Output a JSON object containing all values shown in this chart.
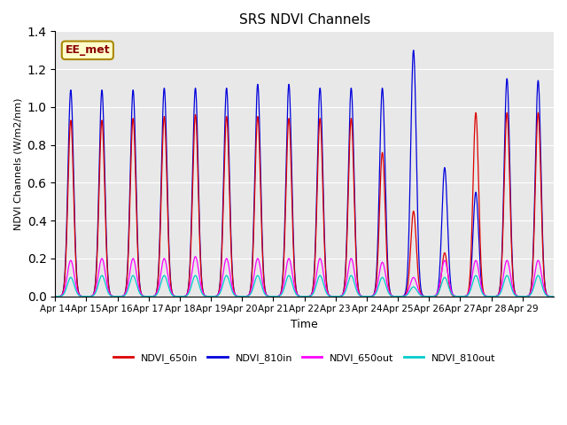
{
  "title": "SRS NDVI Channels",
  "ylabel": "NDVI Channels (W/m2/nm)",
  "xlabel": "Time",
  "annotation": "EE_met",
  "ylim": [
    0.0,
    1.4
  ],
  "background_color": "#e8e8e8",
  "colors": {
    "NDVI_650in": "#dd0000",
    "NDVI_810in": "#0000dd",
    "NDVI_650out": "#ff00ff",
    "NDVI_810out": "#00cccc"
  },
  "n_days": 16,
  "tick_labels": [
    "Apr 14",
    "Apr 15",
    "Apr 16",
    "Apr 17",
    "Apr 18",
    "Apr 19",
    "Apr 20",
    "Apr 21",
    "Apr 22",
    "Apr 23",
    "Apr 24",
    "Apr 25",
    "Apr 26",
    "Apr 27",
    "Apr 28",
    "Apr 29"
  ],
  "peaks_810in": [
    1.09,
    1.09,
    1.09,
    1.1,
    1.1,
    1.1,
    1.12,
    1.12,
    1.1,
    1.1,
    1.1,
    1.3,
    0.68,
    0.55,
    1.15,
    1.14
  ],
  "peaks_650in": [
    0.93,
    0.93,
    0.94,
    0.95,
    0.96,
    0.95,
    0.95,
    0.94,
    0.94,
    0.94,
    0.76,
    0.45,
    0.23,
    0.97,
    0.97,
    0.97
  ],
  "peaks_650out": [
    0.19,
    0.2,
    0.2,
    0.2,
    0.21,
    0.2,
    0.2,
    0.2,
    0.2,
    0.2,
    0.18,
    0.1,
    0.19,
    0.19,
    0.19,
    0.19
  ],
  "peaks_810out": [
    0.1,
    0.11,
    0.11,
    0.11,
    0.11,
    0.11,
    0.11,
    0.11,
    0.11,
    0.11,
    0.1,
    0.05,
    0.1,
    0.11,
    0.11,
    0.11
  ]
}
